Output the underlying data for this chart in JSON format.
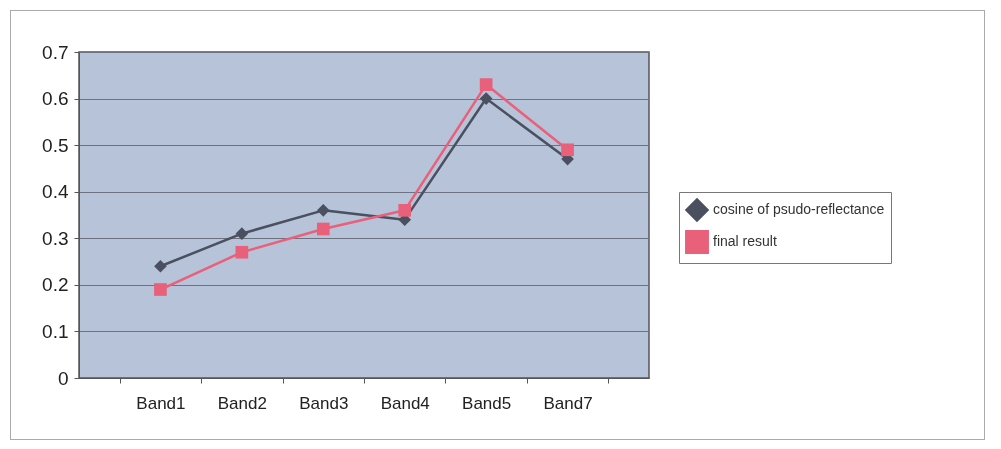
{
  "chart_data": {
    "type": "line",
    "categories": [
      "Band1",
      "Band2",
      "Band3",
      "Band4",
      "Band5",
      "Band7"
    ],
    "series": [
      {
        "name": "cosine of psudo-reflectance",
        "color": "#4a5060",
        "marker": "diamond",
        "values": [
          0.24,
          0.31,
          0.36,
          0.34,
          0.6,
          0.47
        ]
      },
      {
        "name": "final result",
        "color": "#e8607a",
        "marker": "square",
        "values": [
          0.19,
          0.27,
          0.32,
          0.36,
          0.63,
          0.49
        ]
      }
    ],
    "ylim": [
      0,
      0.7
    ],
    "yticks": [
      0,
      0.1,
      0.2,
      0.3,
      0.4,
      0.5,
      0.6,
      0.7
    ],
    "grid": "y",
    "legend": "right"
  }
}
